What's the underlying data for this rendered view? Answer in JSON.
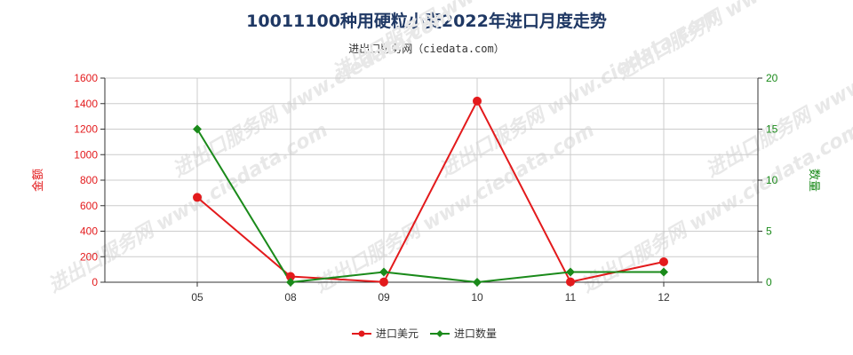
{
  "title": "10011100种用硬粒小麦2022年进口月度走势",
  "subtitle": "进出口服务网（ciedata.com）",
  "watermark": "进出口服务网 www.ciedata.com",
  "colors": {
    "usd": "#e31a1c",
    "qty": "#1a8a1a",
    "axis": "#333333",
    "grid": "#cccccc"
  },
  "chart_data": {
    "type": "line",
    "categories": [
      "05",
      "08",
      "09",
      "10",
      "11",
      "12"
    ],
    "left_axis": {
      "label": "金额",
      "ylim": [
        0,
        1600
      ],
      "ticks": [
        0,
        200,
        400,
        600,
        800,
        1000,
        1200,
        1400,
        1600
      ]
    },
    "right_axis": {
      "label": "数量",
      "ylim": [
        0,
        20
      ],
      "ticks": [
        0,
        5,
        10,
        15,
        20
      ]
    },
    "series": [
      {
        "name": "进口美元",
        "axis": "left",
        "values": [
          665,
          45,
          2,
          1420,
          3,
          160
        ]
      },
      {
        "name": "进口数量",
        "axis": "right",
        "values": [
          15,
          0,
          1,
          0,
          1,
          1
        ]
      }
    ],
    "legend": "bottom",
    "grid": true
  }
}
